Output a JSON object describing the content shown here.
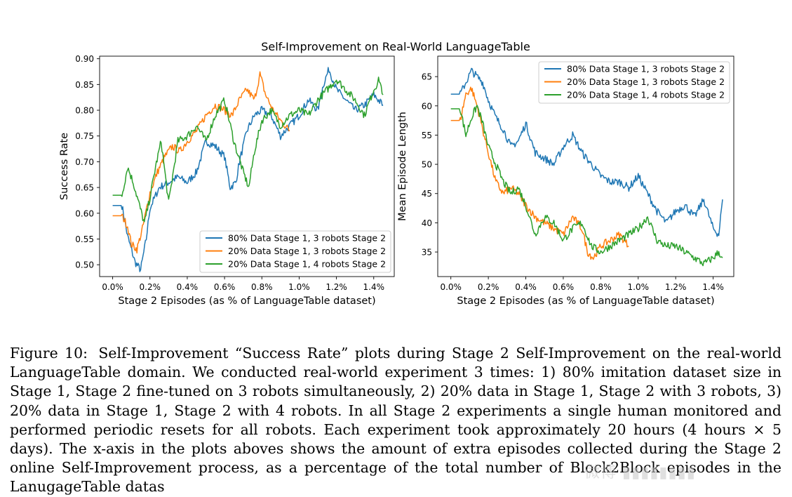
{
  "figure": {
    "suptitle": "Self-Improvement on Real-World LanguageTable"
  },
  "chart_data": [
    {
      "type": "line",
      "title": "",
      "xlabel": "Stage 2 Episodes (as % of LanguageTable dataset)",
      "ylabel": "Success Rate",
      "xlim": [
        -0.0007,
        0.0151
      ],
      "ylim": [
        0.477,
        0.905
      ],
      "xticks": [
        0,
        0.002,
        0.004,
        0.006,
        0.008,
        0.01,
        0.012,
        0.014
      ],
      "xtick_labels": [
        "0.0%",
        "0.2%",
        "0.4%",
        "0.6%",
        "0.8%",
        "1.0%",
        "1.2%",
        "1.4%"
      ],
      "yticks": [
        0.5,
        0.55,
        0.6,
        0.65,
        0.7,
        0.75,
        0.8,
        0.85,
        0.9
      ],
      "ytick_labels": [
        "0.50",
        "0.55",
        "0.60",
        "0.65",
        "0.70",
        "0.75",
        "0.80",
        "0.85",
        "0.90"
      ],
      "legend_position": "lower right",
      "grid": false,
      "series": [
        {
          "name": "80% Data Stage 1, 3 robots Stage 2",
          "color": "#1f77b4",
          "x": [
            0,
            0.0005,
            0.0008,
            0.0012,
            0.0015,
            0.0018,
            0.002,
            0.0025,
            0.003,
            0.0035,
            0.004,
            0.0045,
            0.005,
            0.0055,
            0.006,
            0.0063,
            0.0066,
            0.0068,
            0.0072,
            0.0076,
            0.008,
            0.0085,
            0.009,
            0.0095,
            0.01,
            0.0105,
            0.011,
            0.0113,
            0.0116,
            0.012,
            0.0125,
            0.013,
            0.0135,
            0.014,
            0.0145
          ],
          "y": [
            0.615,
            0.615,
            0.555,
            0.505,
            0.49,
            0.55,
            0.61,
            0.65,
            0.66,
            0.67,
            0.66,
            0.68,
            0.74,
            0.73,
            0.71,
            0.65,
            0.66,
            0.7,
            0.76,
            0.79,
            0.8,
            0.79,
            0.75,
            0.77,
            0.79,
            0.82,
            0.8,
            0.85,
            0.88,
            0.84,
            0.82,
            0.8,
            0.81,
            0.83,
            0.81
          ]
        },
        {
          "name": "20% Data Stage 1, 3 robots Stage 2",
          "color": "#ff7f0e",
          "x": [
            0,
            0.0005,
            0.0008,
            0.001,
            0.0013,
            0.0016,
            0.002,
            0.0024,
            0.0028,
            0.0032,
            0.0036,
            0.004,
            0.0045,
            0.005,
            0.0055,
            0.006,
            0.0064,
            0.0068,
            0.0072,
            0.0076,
            0.0079,
            0.0082,
            0.0086,
            0.009,
            0.0095
          ],
          "y": [
            0.595,
            0.595,
            0.575,
            0.54,
            0.53,
            0.57,
            0.64,
            0.68,
            0.71,
            0.73,
            0.72,
            0.74,
            0.76,
            0.79,
            0.81,
            0.8,
            0.79,
            0.82,
            0.84,
            0.82,
            0.87,
            0.83,
            0.8,
            0.78,
            0.76
          ]
        },
        {
          "name": "20% Data Stage 1, 4 robots Stage 2",
          "color": "#2ca02c",
          "x": [
            0,
            0.0005,
            0.0008,
            0.0011,
            0.0014,
            0.0017,
            0.002,
            0.0023,
            0.0026,
            0.003,
            0.0035,
            0.004,
            0.0045,
            0.005,
            0.0055,
            0.006,
            0.0065,
            0.007,
            0.0073,
            0.0076,
            0.008,
            0.0085,
            0.009,
            0.0095,
            0.01,
            0.0105,
            0.011,
            0.0115,
            0.012,
            0.0125,
            0.013,
            0.0135,
            0.014,
            0.0143,
            0.0145
          ],
          "y": [
            0.635,
            0.635,
            0.69,
            0.66,
            0.62,
            0.58,
            0.63,
            0.69,
            0.74,
            0.62,
            0.74,
            0.75,
            0.77,
            0.74,
            0.79,
            0.82,
            0.74,
            0.68,
            0.65,
            0.72,
            0.78,
            0.8,
            0.77,
            0.79,
            0.8,
            0.79,
            0.82,
            0.84,
            0.86,
            0.84,
            0.82,
            0.79,
            0.84,
            0.86,
            0.83
          ]
        }
      ]
    },
    {
      "type": "line",
      "title": "",
      "xlabel": "Stage 2 Episodes (as % of LanguageTable dataset)",
      "ylabel": "Mean Episode Length",
      "xlim": [
        -0.0007,
        0.0151
      ],
      "ylim": [
        30.8,
        68.5
      ],
      "xticks": [
        0,
        0.002,
        0.004,
        0.006,
        0.008,
        0.01,
        0.012,
        0.014
      ],
      "xtick_labels": [
        "0.0%",
        "0.2%",
        "0.4%",
        "0.6%",
        "0.8%",
        "1.0%",
        "1.2%",
        "1.4%"
      ],
      "yticks": [
        35,
        40,
        45,
        50,
        55,
        60,
        65
      ],
      "ytick_labels": [
        "35",
        "40",
        "45",
        "50",
        "55",
        "60",
        "65"
      ],
      "legend_position": "upper right",
      "grid": false,
      "series": [
        {
          "name": "80% Data Stage 1, 3 robots Stage 2",
          "color": "#1f77b4",
          "x": [
            0,
            0.0005,
            0.0008,
            0.0011,
            0.0014,
            0.0017,
            0.002,
            0.0024,
            0.0028,
            0.0032,
            0.0036,
            0.004,
            0.0045,
            0.005,
            0.0055,
            0.006,
            0.0065,
            0.007,
            0.0075,
            0.008,
            0.0085,
            0.009,
            0.0095,
            0.01,
            0.0105,
            0.011,
            0.0115,
            0.012,
            0.0125,
            0.013,
            0.0135,
            0.014,
            0.0143,
            0.0145
          ],
          "y": [
            62,
            62,
            64,
            66,
            65,
            64,
            61,
            58,
            56,
            53,
            54,
            57,
            52,
            51,
            50,
            53,
            55,
            52,
            50,
            48,
            47,
            47,
            46,
            48,
            45,
            42,
            40,
            42,
            43,
            41,
            44,
            39,
            38,
            44
          ]
        },
        {
          "name": "20% Data Stage 1, 3 robots Stage 2",
          "color": "#ff7f0e",
          "x": [
            0,
            0.0005,
            0.0008,
            0.0011,
            0.0014,
            0.0017,
            0.002,
            0.0024,
            0.0028,
            0.0032,
            0.0036,
            0.004,
            0.0045,
            0.005,
            0.0055,
            0.006,
            0.0065,
            0.007,
            0.0073,
            0.0076,
            0.008,
            0.0085,
            0.009,
            0.0095
          ],
          "y": [
            57.5,
            57.5,
            62,
            63,
            60,
            56,
            52,
            47,
            45,
            46,
            45,
            43,
            41,
            40,
            39,
            38,
            41,
            39,
            35,
            34,
            36,
            37,
            38,
            36
          ]
        },
        {
          "name": "20% Data Stage 1, 4 robots Stage 2",
          "color": "#2ca02c",
          "x": [
            0,
            0.0005,
            0.0008,
            0.0011,
            0.0014,
            0.0017,
            0.002,
            0.0024,
            0.0028,
            0.0032,
            0.0036,
            0.004,
            0.0045,
            0.005,
            0.0055,
            0.006,
            0.0065,
            0.007,
            0.0075,
            0.008,
            0.0085,
            0.009,
            0.0095,
            0.01,
            0.0105,
            0.011,
            0.0115,
            0.012,
            0.0125,
            0.013,
            0.0135,
            0.014,
            0.0143,
            0.0145
          ],
          "y": [
            59.5,
            59.5,
            55,
            58,
            60,
            57,
            53,
            50,
            47,
            45,
            46,
            43,
            38,
            41,
            40,
            37,
            39,
            40,
            36,
            35,
            36,
            37,
            38,
            39,
            41,
            37,
            36,
            36,
            35,
            34,
            33,
            34,
            35,
            34
          ]
        }
      ]
    }
  ],
  "caption": {
    "label": "Figure 10:",
    "text": "Self-Improvement “Success Rate” plots during Stage 2 Self-Improvement on the real-world LanguageTable domain. We conducted real-world experiment 3 times: 1) 80% imitation dataset size in Stage 1, Stage 2 fine-tuned on 3 robots simultaneously, 2) 20% data in Stage 1, Stage 2 with 3 robots, 3) 20% data in Stage 1, Stage 2 with 4 robots. In all Stage 2 experiments a single human monitored and performed periodic resets for all robots. Each experiment took approximately 20 hours (4 hours × 5 days). The x-axis in the plots aboves shows the amount of extra episodes collected during the Stage 2 online Self-Improvement process, as a percentage of the total number of Block2Block episodes in the LanugageTable datas"
  },
  "watermark": "微博 ▮▮▮▮▮▮▮▮"
}
